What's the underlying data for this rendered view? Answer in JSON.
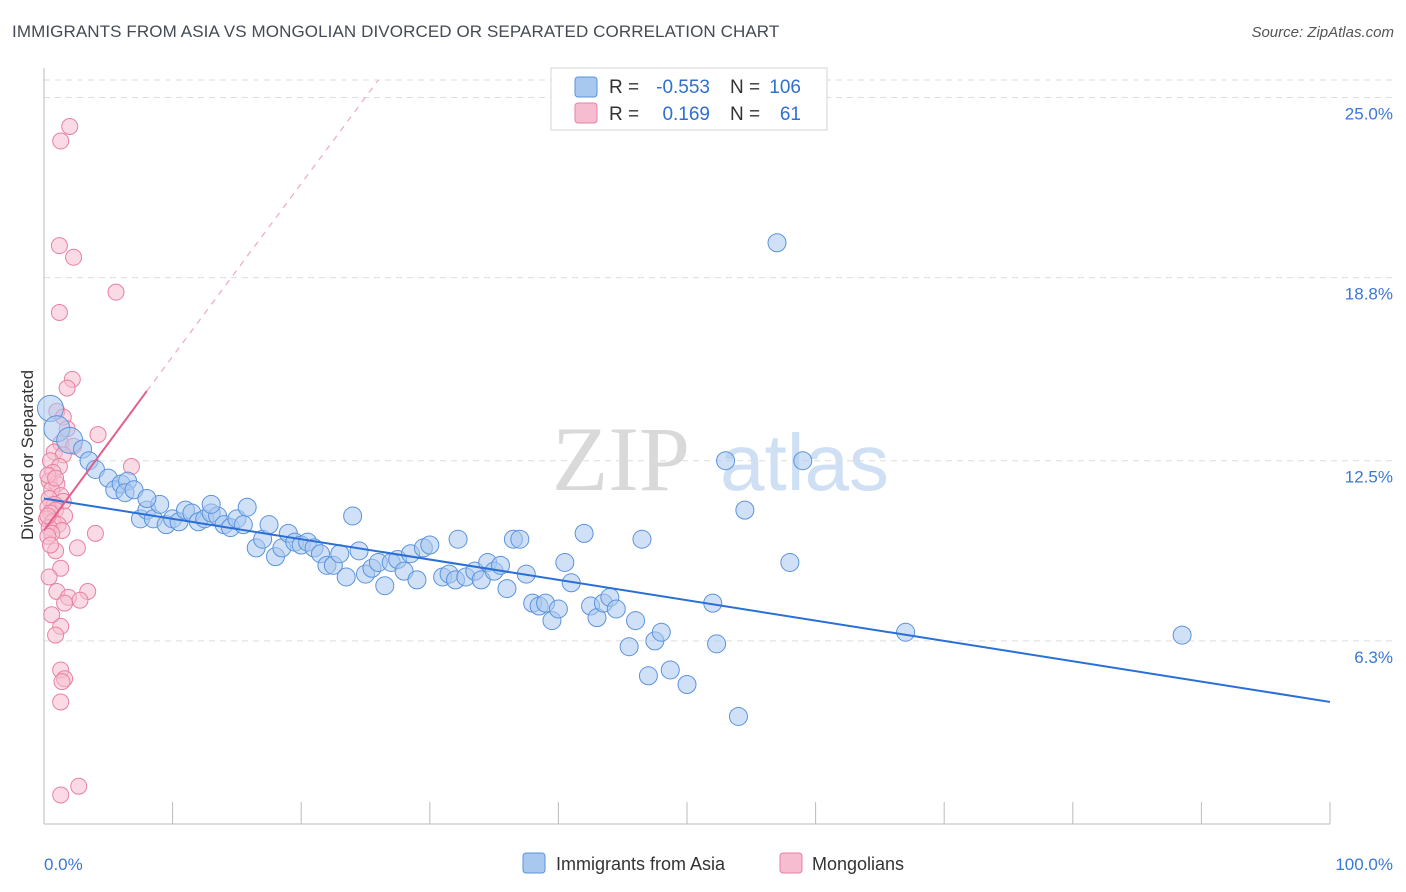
{
  "title": "IMMIGRANTS FROM ASIA VS MONGOLIAN DIVORCED OR SEPARATED CORRELATION CHART",
  "source": "Source: ZipAtlas.com",
  "watermark": {
    "zip": "ZIP",
    "atlas": "atlas"
  },
  "colors": {
    "blue_fill": "#a9c8f0",
    "blue_stroke": "#5b93dc",
    "blue_line": "#2a6fd6",
    "pink_fill": "#f6bdd0",
    "pink_stroke": "#e8819f",
    "pink_line": "#e05f8c",
    "tick_text": "#3b78d4",
    "grid": "#dddddd"
  },
  "legend": {
    "rows": [
      {
        "r_label": "R =",
        "r_value": "-0.553",
        "n_label": "N =",
        "n_value": "106"
      },
      {
        "r_label": "R =",
        "r_value": "0.169",
        "n_label": "N =",
        "n_value": "61"
      }
    ]
  },
  "chart_data": {
    "type": "scatter",
    "title": "IMMIGRANTS FROM ASIA VS MONGOLIAN DIVORCED OR SEPARATED CORRELATION CHART",
    "xlabel": "",
    "ylabel": "Divorced or Separated",
    "xlim": [
      0,
      100
    ],
    "ylim": [
      0,
      25.6
    ],
    "x_tick_labels": [
      "0.0%",
      "100.0%"
    ],
    "y_ticks": [
      6.3,
      12.5,
      18.8,
      25.0
    ],
    "y_tick_labels": [
      "6.3%",
      "12.5%",
      "18.8%",
      "25.0%"
    ],
    "grid": "horizontal dashed",
    "legend_position": "top-center",
    "series": [
      {
        "name": "Immigrants from Asia",
        "r": -0.553,
        "n": 106,
        "trend": {
          "x": [
            0,
            100
          ],
          "y": [
            11.2,
            4.2
          ]
        },
        "points": [
          [
            0.5,
            14.3
          ],
          [
            1,
            13.6
          ],
          [
            2,
            13.2
          ],
          [
            3,
            12.9
          ],
          [
            3.5,
            12.5
          ],
          [
            4,
            12.2
          ],
          [
            5,
            11.9
          ],
          [
            5.5,
            11.5
          ],
          [
            6,
            11.7
          ],
          [
            6.5,
            11.8
          ],
          [
            6.3,
            11.4
          ],
          [
            7,
            11.5
          ],
          [
            7.5,
            10.5
          ],
          [
            8,
            10.8
          ],
          [
            8.5,
            10.5
          ],
          [
            9,
            11.0
          ],
          [
            9.5,
            10.3
          ],
          [
            10,
            10.5
          ],
          [
            10.5,
            10.4
          ],
          [
            11,
            10.8
          ],
          [
            11.5,
            10.7
          ],
          [
            12,
            10.4
          ],
          [
            12.5,
            10.5
          ],
          [
            13,
            10.7
          ],
          [
            13.5,
            10.6
          ],
          [
            14,
            10.3
          ],
          [
            14.5,
            10.2
          ],
          [
            15,
            10.5
          ],
          [
            15.5,
            10.3
          ],
          [
            15.8,
            10.9
          ],
          [
            16.5,
            9.5
          ],
          [
            17,
            9.8
          ],
          [
            17.5,
            10.3
          ],
          [
            18,
            9.2
          ],
          [
            18.5,
            9.5
          ],
          [
            19,
            10.0
          ],
          [
            19.5,
            9.7
          ],
          [
            20,
            9.6
          ],
          [
            20.5,
            9.7
          ],
          [
            21,
            9.5
          ],
          [
            21.5,
            9.3
          ],
          [
            22,
            8.9
          ],
          [
            22.5,
            8.9
          ],
          [
            23,
            9.3
          ],
          [
            23.5,
            8.5
          ],
          [
            24,
            10.6
          ],
          [
            24.5,
            9.4
          ],
          [
            25,
            8.6
          ],
          [
            25.5,
            8.8
          ],
          [
            26,
            9.0
          ],
          [
            26.5,
            8.2
          ],
          [
            27,
            9.0
          ],
          [
            27.5,
            9.1
          ],
          [
            28,
            8.7
          ],
          [
            28.5,
            9.3
          ],
          [
            29,
            8.4
          ],
          [
            29.5,
            9.5
          ],
          [
            30,
            9.6
          ],
          [
            31,
            8.5
          ],
          [
            31.5,
            8.6
          ],
          [
            32,
            8.4
          ],
          [
            32.2,
            9.8
          ],
          [
            32.8,
            8.5
          ],
          [
            33.5,
            8.7
          ],
          [
            34,
            8.4
          ],
          [
            34.5,
            9.0
          ],
          [
            35,
            8.7
          ],
          [
            35.5,
            8.9
          ],
          [
            36,
            8.1
          ],
          [
            36.5,
            9.8
          ],
          [
            37,
            9.8
          ],
          [
            37.5,
            8.6
          ],
          [
            38,
            7.6
          ],
          [
            38.5,
            7.5
          ],
          [
            39,
            7.6
          ],
          [
            39.5,
            7.0
          ],
          [
            40,
            7.4
          ],
          [
            40.5,
            9.0
          ],
          [
            41,
            8.3
          ],
          [
            42,
            10.0
          ],
          [
            42.5,
            7.5
          ],
          [
            43,
            7.1
          ],
          [
            43.5,
            7.6
          ],
          [
            44,
            7.8
          ],
          [
            44.5,
            7.4
          ],
          [
            45.5,
            6.1
          ],
          [
            46,
            7.0
          ],
          [
            46.5,
            9.8
          ],
          [
            47,
            5.1
          ],
          [
            47.5,
            6.3
          ],
          [
            48,
            6.6
          ],
          [
            48.7,
            5.3
          ],
          [
            50,
            4.8
          ],
          [
            52,
            7.6
          ],
          [
            52.3,
            6.2
          ],
          [
            53,
            12.5
          ],
          [
            54,
            3.7
          ],
          [
            54.5,
            10.8
          ],
          [
            57,
            20.0
          ],
          [
            58,
            9.0
          ],
          [
            59,
            12.5
          ],
          [
            67,
            6.6
          ],
          [
            88.5,
            6.5
          ],
          [
            13,
            11.0
          ],
          [
            8,
            11.2
          ]
        ]
      },
      {
        "name": "Mongolians",
        "r": 0.169,
        "n": 61,
        "trend_solid": {
          "x": [
            0,
            8
          ],
          "y": [
            10.1,
            14.9
          ]
        },
        "trend_dashed": {
          "x": [
            8,
            26
          ],
          "y": [
            14.9,
            25.6
          ]
        },
        "points": [
          [
            2,
            24.0
          ],
          [
            1.3,
            23.5
          ],
          [
            1.2,
            19.9
          ],
          [
            2.3,
            19.5
          ],
          [
            5.6,
            18.3
          ],
          [
            1.2,
            17.6
          ],
          [
            2.2,
            15.3
          ],
          [
            1.8,
            15.0
          ],
          [
            1.0,
            14.2
          ],
          [
            1.5,
            14.0
          ],
          [
            1.8,
            13.6
          ],
          [
            4.2,
            13.4
          ],
          [
            1.3,
            13.1
          ],
          [
            2.3,
            13.0
          ],
          [
            0.8,
            12.8
          ],
          [
            1.5,
            12.7
          ],
          [
            0.5,
            12.5
          ],
          [
            1.2,
            12.3
          ],
          [
            6.8,
            12.3
          ],
          [
            0.7,
            12.1
          ],
          [
            0.4,
            11.8
          ],
          [
            1.0,
            11.7
          ],
          [
            0.6,
            11.5
          ],
          [
            1.3,
            11.3
          ],
          [
            0.4,
            11.2
          ],
          [
            1.5,
            11.1
          ],
          [
            0.8,
            11.0
          ],
          [
            0.3,
            10.9
          ],
          [
            0.9,
            10.8
          ],
          [
            0.5,
            10.7
          ],
          [
            1.6,
            10.6
          ],
          [
            0.2,
            10.5
          ],
          [
            0.7,
            10.4
          ],
          [
            1.1,
            10.3
          ],
          [
            0.4,
            10.2
          ],
          [
            1.4,
            10.1
          ],
          [
            0.6,
            10.0
          ],
          [
            4.0,
            10.0
          ],
          [
            0.3,
            9.9
          ],
          [
            2.6,
            9.5
          ],
          [
            0.9,
            9.4
          ],
          [
            1.3,
            8.8
          ],
          [
            1.0,
            8.0
          ],
          [
            3.4,
            8.0
          ],
          [
            1.9,
            7.8
          ],
          [
            2.8,
            7.7
          ],
          [
            1.6,
            7.6
          ],
          [
            1.3,
            6.8
          ],
          [
            0.9,
            6.5
          ],
          [
            1.3,
            5.3
          ],
          [
            1.6,
            5.0
          ],
          [
            1.4,
            4.9
          ],
          [
            1.3,
            4.2
          ],
          [
            2.7,
            1.3
          ],
          [
            1.3,
            1.0
          ],
          [
            0.3,
            12.0
          ],
          [
            0.9,
            11.9
          ],
          [
            0.3,
            10.6
          ],
          [
            0.5,
            9.6
          ],
          [
            0.4,
            8.5
          ],
          [
            0.6,
            7.2
          ]
        ]
      }
    ]
  },
  "bottom_legend": [
    {
      "label": "Immigrants from Asia"
    },
    {
      "label": "Mongolians"
    }
  ]
}
